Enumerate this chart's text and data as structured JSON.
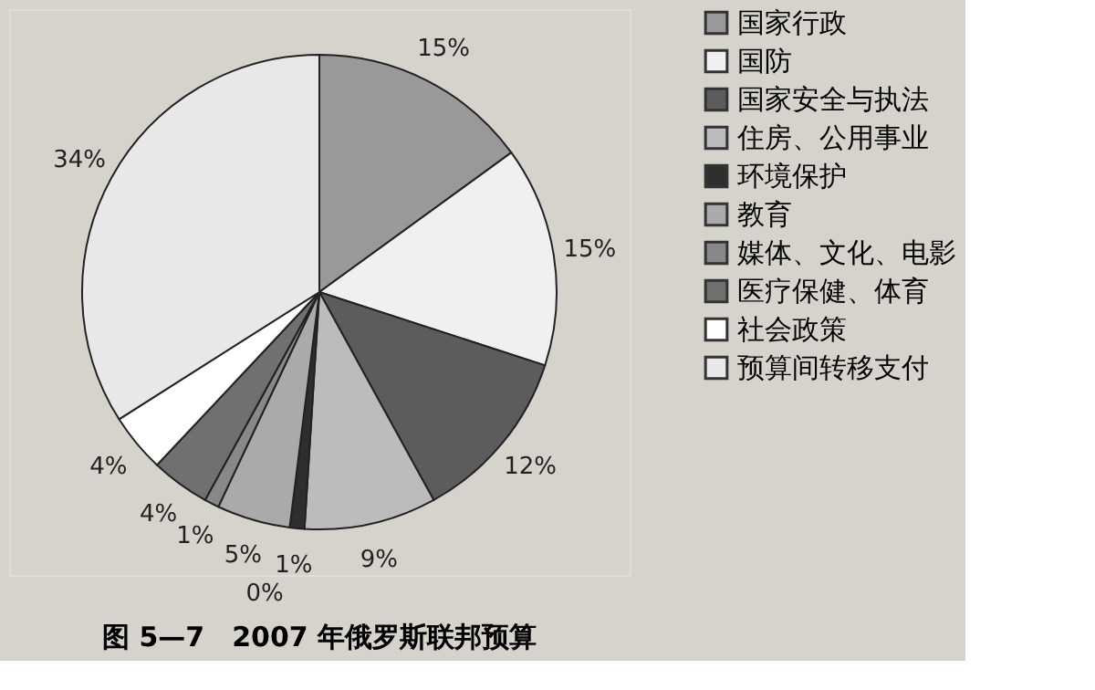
{
  "chart_data": {
    "type": "pie",
    "title": "图 5—7　2007 年俄罗斯联邦预算",
    "categories": [
      "国家行政",
      "国防",
      "国家安全与执法",
      "住房、公用事业",
      "环境保护",
      "教育",
      "媒体、文化、电影",
      "医疗保健、体育",
      "社会政策",
      "预算间转移支付"
    ],
    "values": [
      15,
      15,
      12,
      9,
      1,
      5,
      1,
      4,
      4,
      34
    ],
    "value_labels": [
      "15%",
      "15%",
      "12%",
      "9%",
      "1%",
      "5%",
      "1%",
      "4%",
      "4%",
      "34%"
    ],
    "colors": [
      "#999999",
      "#f0f0f0",
      "#5c5c5c",
      "#bcbcbc",
      "#2e2e2e",
      "#aaaaaa",
      "#888888",
      "#707070",
      "#ffffff",
      "#e8e8e8"
    ],
    "annotations": [
      "0%"
    ],
    "legend": "right"
  }
}
